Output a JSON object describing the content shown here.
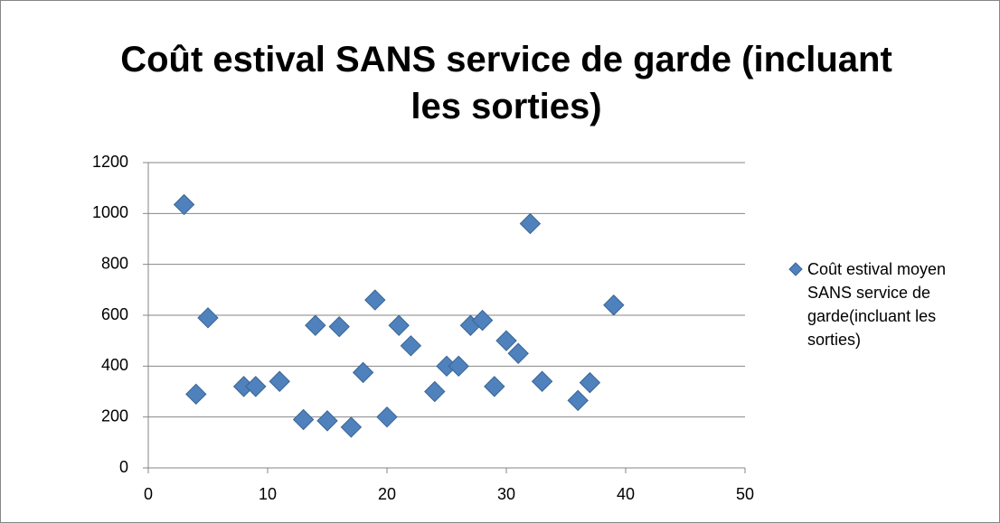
{
  "chart_data": {
    "type": "scatter",
    "title": "Coût estival SANS service de garde (incluant les sorties)",
    "series": [
      {
        "name": "Coût estival moyen SANS service de garde(incluant les sorties)",
        "color": "#4f81bd",
        "x": [
          3,
          4,
          5,
          8,
          9,
          11,
          13,
          14,
          15,
          16,
          17,
          18,
          19,
          20,
          21,
          22,
          24,
          25,
          26,
          27,
          28,
          29,
          30,
          31,
          32,
          33,
          36,
          37,
          39
        ],
        "values": [
          1035,
          290,
          590,
          320,
          320,
          340,
          190,
          560,
          185,
          555,
          160,
          375,
          660,
          200,
          560,
          480,
          300,
          400,
          400,
          560,
          580,
          320,
          500,
          450,
          960,
          340,
          265,
          335,
          640
        ]
      }
    ],
    "xlim": [
      0,
      50
    ],
    "xticks": [
      0,
      10,
      20,
      30,
      40,
      50
    ],
    "ylim": [
      0,
      1200
    ],
    "yticks": [
      0,
      200,
      400,
      600,
      800,
      1000,
      1200
    ],
    "grid": true,
    "legend": "right"
  }
}
